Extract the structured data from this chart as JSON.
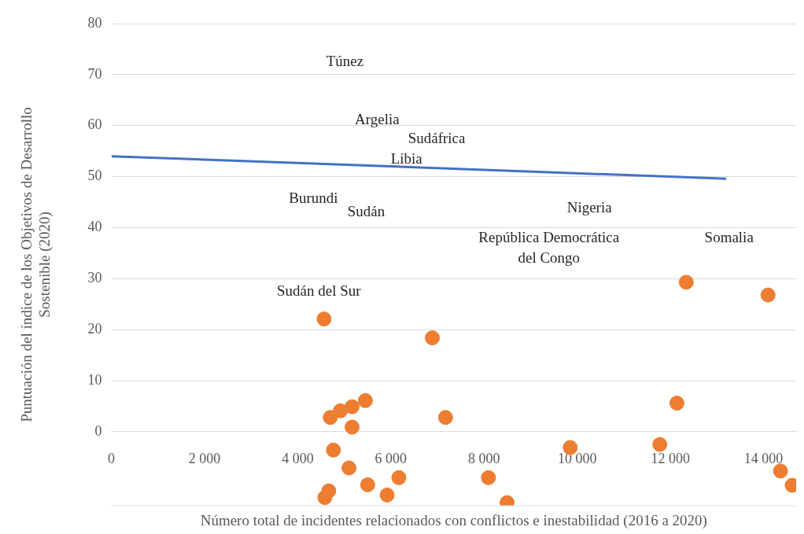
{
  "chart_data": {
    "type": "scatter",
    "xlabel": "Número total de incidentes relacionados con conflictos e inestabilidad (2016 a 2020)",
    "ylabel": "Puntuación del índice de los Objetivos de Desarrollo\nSostenible (2020)",
    "xlim": [
      0,
      14700
    ],
    "ylim": [
      -14.5,
      80
    ],
    "xticks": [
      0,
      {
        "value": 2000,
        "label": "2 000"
      },
      {
        "value": 4000,
        "label": "4 000"
      },
      {
        "value": 6000,
        "label": "6 000"
      },
      {
        "value": 8000,
        "label": "8 000"
      },
      {
        "value": 10000,
        "label": "10 000"
      },
      {
        "value": 12000,
        "label": "12 000"
      },
      {
        "value": 14000,
        "label": "14 000"
      }
    ],
    "yticks": [
      0,
      10,
      20,
      30,
      40,
      50,
      60,
      70,
      80
    ],
    "grid": "y",
    "legend": false,
    "marker": "circle",
    "series": [
      {
        "type": "scatter",
        "color": "#ed7d31",
        "x": [
          4565,
          6890,
          12341,
          14097,
          5452,
          5167,
          4916,
          4699,
          5167,
          7174,
          12140,
          4766,
          9850,
          11773,
          5100,
          6171,
          5502,
          8094,
          14365,
          14615,
          4666,
          5920,
          4582,
          8495
        ],
        "values": [
          22.1,
          18.4,
          29.3,
          26.8,
          6.1,
          4.9,
          4.1,
          2.8,
          0.9,
          2.8,
          5.6,
          -3.6,
          -3.1,
          -2.5,
          -7.1,
          -9.0,
          -10.4,
          -9.0,
          -7.7,
          -10.5,
          -11.6,
          -12.4,
          -12.9,
          -13.9
        ]
      },
      {
        "type": "line",
        "color": "#4472c4",
        "marker": "none",
        "x": [
          0,
          13200
        ],
        "values": [
          54,
          49.6
        ]
      }
    ],
    "annotations": [
      "Túnez",
      "Argelia",
      "Sudáfrica",
      "Libia",
      "Burundi",
      "Sudán",
      "Nigeria",
      "República Democrática\ndel Congo",
      "Somalia",
      "Sudán del Sur"
    ]
  }
}
